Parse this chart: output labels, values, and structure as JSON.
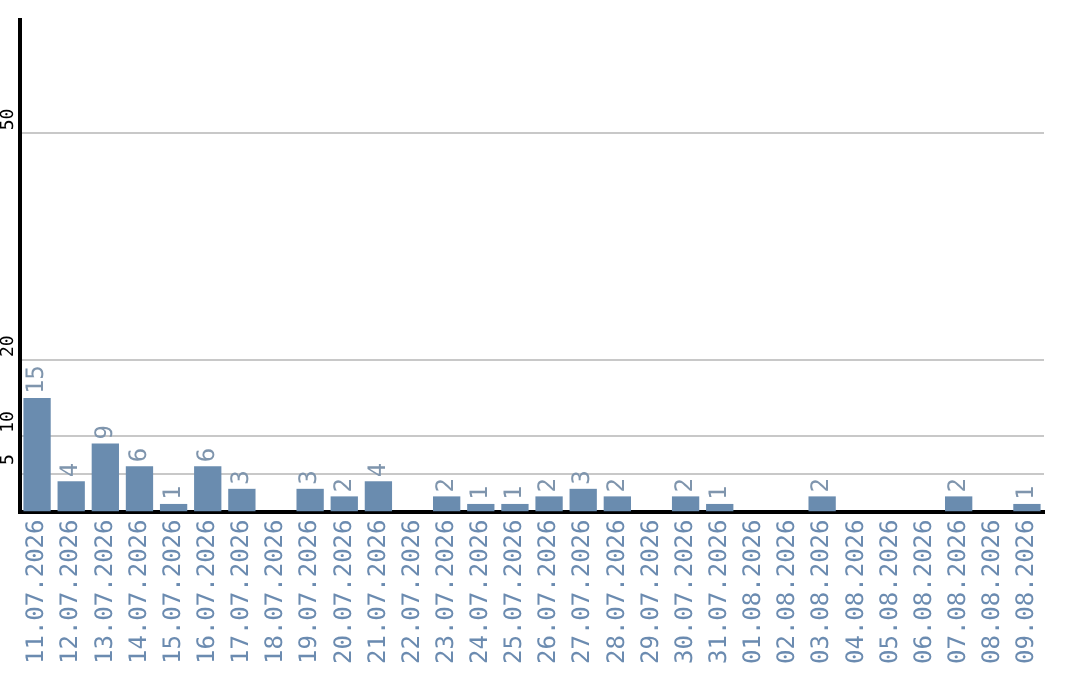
{
  "chart_data": {
    "type": "bar",
    "categories": [
      "11.07.2026",
      "12.07.2026",
      "13.07.2026",
      "14.07.2026",
      "15.07.2026",
      "16.07.2026",
      "17.07.2026",
      "18.07.2026",
      "19.07.2026",
      "20.07.2026",
      "21.07.2026",
      "22.07.2026",
      "23.07.2026",
      "24.07.2026",
      "25.07.2026",
      "26.07.2026",
      "27.07.2026",
      "28.07.2026",
      "29.07.2026",
      "30.07.2026",
      "31.07.2026",
      "01.08.2026",
      "02.08.2026",
      "03.08.2026",
      "04.08.2026",
      "05.08.2026",
      "06.08.2026",
      "07.08.2026",
      "08.08.2026",
      "09.08.2026"
    ],
    "values": [
      15,
      4,
      9,
      6,
      1,
      6,
      3,
      null,
      3,
      2,
      4,
      null,
      2,
      1,
      1,
      2,
      3,
      2,
      null,
      2,
      1,
      null,
      null,
      2,
      null,
      null,
      null,
      2,
      null,
      1
    ],
    "color": "#6a8caf",
    "ylim": [
      0,
      65
    ],
    "yticks": [
      5,
      10,
      20,
      50
    ],
    "grid": "y",
    "data_labels": true,
    "legend": false
  }
}
